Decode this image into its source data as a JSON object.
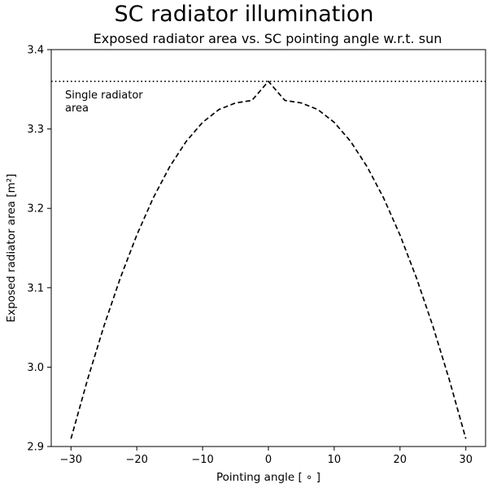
{
  "chart_data": {
    "type": "line",
    "suptitle": "SC radiator illumination",
    "title": "Exposed radiator area vs. SC pointing angle w.r.t. sun",
    "xlabel": "Pointing angle",
    "xlabel_unit": "[ ∘ ]",
    "ylabel": "Exposed radiator area",
    "ylabel_unit": "[m²]",
    "xlim": [
      -33,
      33
    ],
    "ylim": [
      2.9,
      3.4
    ],
    "xticks": [
      -30,
      -20,
      -10,
      0,
      10,
      20,
      30
    ],
    "xtick_labels": [
      "−30",
      "−20",
      "−10",
      "0",
      "10",
      "20",
      "30"
    ],
    "yticks": [
      2.9,
      3.0,
      3.1,
      3.2,
      3.3,
      3.4
    ],
    "ytick_labels": [
      "2.9",
      "3.0",
      "3.1",
      "3.2",
      "3.3",
      "3.4"
    ],
    "grid": false,
    "series": [
      {
        "style": "dashed",
        "color": "#000000",
        "x": [
          -30,
          -27.5,
          -25,
          -22.5,
          -20,
          -17.5,
          -15,
          -12.5,
          -10,
          -7.5,
          -5,
          -2.5,
          0,
          2.5,
          5,
          7.5,
          10,
          12.5,
          15,
          17.5,
          20,
          22.5,
          25,
          27.5,
          30
        ],
        "values": [
          2.9099,
          2.9839,
          3.0515,
          3.1124,
          3.1664,
          3.2132,
          3.2525,
          3.2843,
          3.3084,
          3.3246,
          3.3328,
          3.336,
          3.36,
          3.336,
          3.3328,
          3.3246,
          3.3084,
          3.2843,
          3.2525,
          3.2132,
          3.1664,
          3.1124,
          3.0515,
          2.9839,
          2.9099
        ]
      }
    ],
    "reference_line": {
      "orientation": "horizontal",
      "style": "dotted",
      "color": "#000000",
      "y": 3.36
    },
    "annotation": {
      "lines": [
        "Single radiator",
        "area"
      ],
      "x": -31,
      "y": 3.34
    }
  }
}
